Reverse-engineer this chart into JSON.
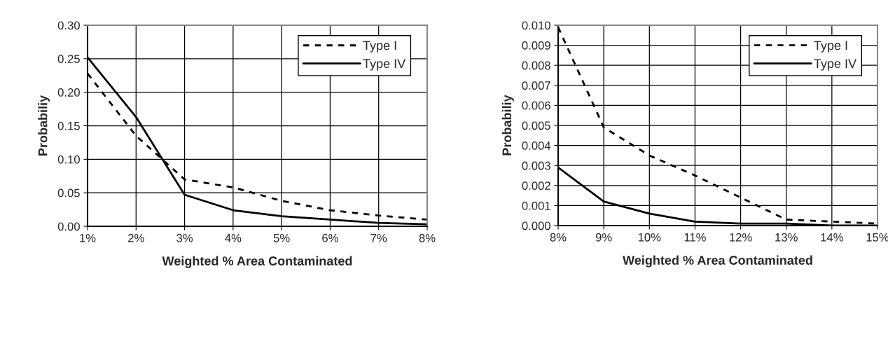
{
  "chart_data": [
    {
      "type": "line",
      "categories": [
        "1%",
        "2%",
        "3%",
        "4%",
        "5%",
        "6%",
        "7%",
        "8%"
      ],
      "xlabel": "Weighted % Area Contaminated",
      "ylabel": "Probabiliy",
      "series": [
        {
          "name": "Type I",
          "color": "#000000",
          "line_style": "dashed",
          "values": [
            0.228,
            0.135,
            0.07,
            0.058,
            0.038,
            0.024,
            0.016,
            0.01
          ]
        },
        {
          "name": "Type IV",
          "color": "#000000",
          "line_style": "solid",
          "values": [
            0.252,
            0.163,
            0.047,
            0.024,
            0.015,
            0.01,
            0.005,
            0.003
          ]
        }
      ],
      "ylim": [
        0,
        0.3
      ],
      "yticks": [
        {
          "value": 0,
          "label": "0.00"
        },
        {
          "value": 0.05,
          "label": "0.05"
        },
        {
          "value": 0.1,
          "label": "0.10"
        },
        {
          "value": 0.15,
          "label": "0.15"
        },
        {
          "value": 0.2,
          "label": "0.20"
        },
        {
          "value": 0.25,
          "label": "0.25"
        },
        {
          "value": 0.3,
          "label": "0.30"
        }
      ],
      "grid": true,
      "legend": "top right",
      "marker": "none"
    },
    {
      "type": "line",
      "categories": [
        "8%",
        "9%",
        "10%",
        "11%",
        "12%",
        "13%",
        "14%",
        "15%"
      ],
      "xlabel": "Weighted % Area Contaminated",
      "ylabel": "Probabiliy",
      "series": [
        {
          "name": "Type I",
          "color": "#000000",
          "line_style": "dashed",
          "values": [
            0.0099,
            0.0049,
            0.0035,
            0.0025,
            0.0014,
            0.0003,
            0.0002,
            0.0001
          ]
        },
        {
          "name": "Type IV",
          "color": "#000000",
          "line_style": "solid",
          "values": [
            0.0029,
            0.0012,
            0.0006,
            0.0002,
            0.0001,
            0.0001,
            0.0,
            0.0
          ]
        }
      ],
      "ylim": [
        0,
        0.01
      ],
      "yticks": [
        {
          "value": 0,
          "label": "0.000"
        },
        {
          "value": 0.001,
          "label": "0.001"
        },
        {
          "value": 0.002,
          "label": "0.002"
        },
        {
          "value": 0.003,
          "label": "0.003"
        },
        {
          "value": 0.004,
          "label": "0.004"
        },
        {
          "value": 0.005,
          "label": "0.005"
        },
        {
          "value": 0.006,
          "label": "0.006"
        },
        {
          "value": 0.007,
          "label": "0.007"
        },
        {
          "value": 0.008,
          "label": "0.008"
        },
        {
          "value": 0.009,
          "label": "0.009"
        },
        {
          "value": 0.01,
          "label": "0.010"
        }
      ],
      "grid": true,
      "legend": "top right",
      "marker": "none"
    }
  ]
}
